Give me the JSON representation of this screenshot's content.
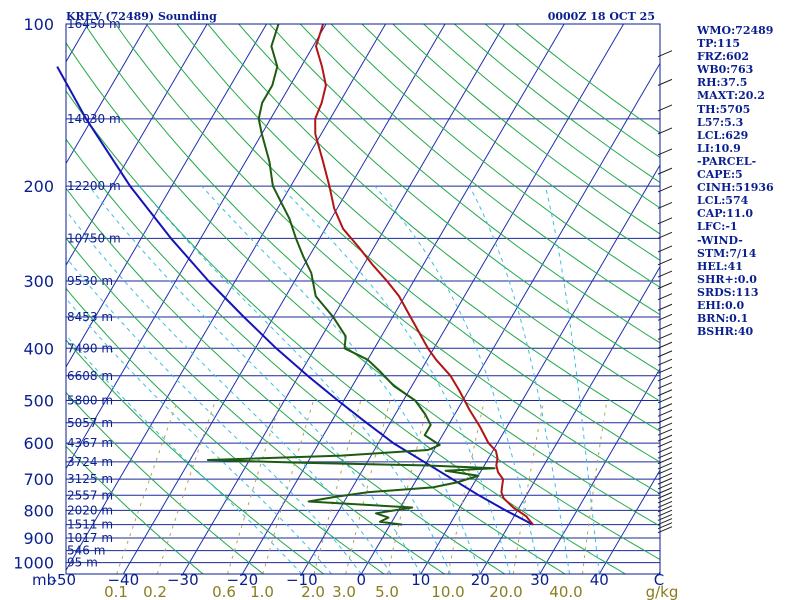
{
  "chart_data": {
    "type": "skew-t",
    "title": "KREV (72489) Sounding",
    "valid_time": "0000Z 18 OCT 25",
    "pressure_axis_unit": "mb",
    "temperature_unit": "C",
    "mixing_ratio_unit": "g/kg",
    "pressure_ticks": [
      100,
      200,
      300,
      400,
      500,
      600,
      700,
      800,
      900,
      1000
    ],
    "temperature_ticks": [
      -50,
      -40,
      -30,
      -20,
      -10,
      0,
      10,
      20,
      30,
      40
    ],
    "temperature_tick_labels": [
      "-50",
      "−40",
      "−30",
      "−20",
      "−10",
      "0",
      "10",
      "20",
      "30",
      "40"
    ],
    "temperature_axis_end_label": "C",
    "mixing_ratio_labels": [
      "0.1",
      "0.2",
      "0.6",
      "1.0",
      "2.0",
      "3.0",
      "5.0",
      "10.0",
      "20.0",
      "40.0",
      "g/kg"
    ],
    "mixing_ratio_values": [
      0.1,
      0.2,
      0.6,
      1.0,
      2.0,
      3.0,
      5.0,
      10.0,
      20.0,
      40.0
    ],
    "height_levels": [
      {
        "p": 100,
        "label": "16450 m"
      },
      {
        "p": 150,
        "label": "14030 m"
      },
      {
        "p": 200,
        "label": "12200 m"
      },
      {
        "p": 250,
        "label": "10750 m"
      },
      {
        "p": 300,
        "label": "9530 m"
      },
      {
        "p": 350,
        "label": "8453 m"
      },
      {
        "p": 400,
        "label": "7490 m"
      },
      {
        "p": 450,
        "label": "6608 m"
      },
      {
        "p": 500,
        "label": "5800 m"
      },
      {
        "p": 550,
        "label": "5057 m"
      },
      {
        "p": 600,
        "label": "4367 m"
      },
      {
        "p": 650,
        "label": "3724 m"
      },
      {
        "p": 700,
        "label": "3125 m"
      },
      {
        "p": 750,
        "label": "2557 m"
      },
      {
        "p": 800,
        "label": "2020 m"
      },
      {
        "p": 850,
        "label": "1511 m"
      },
      {
        "p": 900,
        "label": "1017 m"
      },
      {
        "p": 950,
        "label": "546 m"
      },
      {
        "p": 1000,
        "label": "95 m"
      }
    ],
    "temperature_profile": [
      {
        "p": 850,
        "t": 24.0
      },
      {
        "p": 820,
        "t": 22.0
      },
      {
        "p": 790,
        "t": 19.0
      },
      {
        "p": 760,
        "t": 16.5
      },
      {
        "p": 740,
        "t": 15.5
      },
      {
        "p": 720,
        "t": 15.0
      },
      {
        "p": 700,
        "t": 14.5
      },
      {
        "p": 680,
        "t": 13.0
      },
      {
        "p": 660,
        "t": 12.0
      },
      {
        "p": 640,
        "t": 11.5
      },
      {
        "p": 620,
        "t": 10.5
      },
      {
        "p": 600,
        "t": 8.5
      },
      {
        "p": 560,
        "t": 5.5
      },
      {
        "p": 520,
        "t": 2.0
      },
      {
        "p": 480,
        "t": -1.5
      },
      {
        "p": 450,
        "t": -4.5
      },
      {
        "p": 420,
        "t": -8.5
      },
      {
        "p": 400,
        "t": -11.0
      },
      {
        "p": 370,
        "t": -14.5
      },
      {
        "p": 350,
        "t": -17.0
      },
      {
        "p": 320,
        "t": -21.0
      },
      {
        "p": 300,
        "t": -24.5
      },
      {
        "p": 280,
        "t": -28.5
      },
      {
        "p": 260,
        "t": -32.5
      },
      {
        "p": 240,
        "t": -37.0
      },
      {
        "p": 220,
        "t": -40.5
      },
      {
        "p": 200,
        "t": -43.5
      },
      {
        "p": 180,
        "t": -47.0
      },
      {
        "p": 160,
        "t": -51.0
      },
      {
        "p": 150,
        "t": -52.5
      },
      {
        "p": 140,
        "t": -53.0
      },
      {
        "p": 130,
        "t": -54.0
      },
      {
        "p": 120,
        "t": -56.5
      },
      {
        "p": 110,
        "t": -59.5
      },
      {
        "p": 100,
        "t": -60.5
      }
    ],
    "dewpoint_profile": [
      {
        "p": 850,
        "t": 2.0
      },
      {
        "p": 840,
        "t": -2.0
      },
      {
        "p": 825,
        "t": -1.0
      },
      {
        "p": 810,
        "t": -3.5
      },
      {
        "p": 790,
        "t": 2.0
      },
      {
        "p": 770,
        "t": -16.0
      },
      {
        "p": 755,
        "t": -12.0
      },
      {
        "p": 740,
        "t": -7.0
      },
      {
        "p": 725,
        "t": 3.5
      },
      {
        "p": 710,
        "t": 7.0
      },
      {
        "p": 690,
        "t": 10.0
      },
      {
        "p": 675,
        "t": 4.0
      },
      {
        "p": 668,
        "t": 12.0
      },
      {
        "p": 660,
        "t": 0.0
      },
      {
        "p": 653,
        "t": -20.0
      },
      {
        "p": 645,
        "t": -37.0
      },
      {
        "p": 633,
        "t": -15.0
      },
      {
        "p": 618,
        "t": -1.0
      },
      {
        "p": 605,
        "t": 0.5
      },
      {
        "p": 580,
        "t": -3.0
      },
      {
        "p": 555,
        "t": -3.0
      },
      {
        "p": 530,
        "t": -5.0
      },
      {
        "p": 500,
        "t": -8.0
      },
      {
        "p": 470,
        "t": -13.0
      },
      {
        "p": 440,
        "t": -17.0
      },
      {
        "p": 420,
        "t": -20.0
      },
      {
        "p": 400,
        "t": -25.0
      },
      {
        "p": 380,
        "t": -26.0
      },
      {
        "p": 350,
        "t": -30.0
      },
      {
        "p": 320,
        "t": -35.0
      },
      {
        "p": 290,
        "t": -38.0
      },
      {
        "p": 270,
        "t": -41.0
      },
      {
        "p": 250,
        "t": -44.0
      },
      {
        "p": 230,
        "t": -47.0
      },
      {
        "p": 200,
        "t": -53.0
      },
      {
        "p": 180,
        "t": -56.0
      },
      {
        "p": 160,
        "t": -60.0
      },
      {
        "p": 150,
        "t": -62.0
      },
      {
        "p": 140,
        "t": -63.0
      },
      {
        "p": 130,
        "t": -63.0
      },
      {
        "p": 120,
        "t": -64.0
      },
      {
        "p": 110,
        "t": -67.0
      },
      {
        "p": 100,
        "t": -68.0
      }
    ],
    "parcel_trace": [
      {
        "p": 850,
        "t": 24.0
      },
      {
        "p": 800,
        "t": 18.0
      },
      {
        "p": 750,
        "t": 12.0
      },
      {
        "p": 700,
        "t": 6.0
      },
      {
        "p": 650,
        "t": -0.5
      },
      {
        "p": 600,
        "t": -7.5
      },
      {
        "p": 550,
        "t": -14.0
      },
      {
        "p": 500,
        "t": -21.0
      },
      {
        "p": 450,
        "t": -28.5
      },
      {
        "p": 400,
        "t": -36.5
      },
      {
        "p": 350,
        "t": -45.0
      },
      {
        "p": 300,
        "t": -54.5
      },
      {
        "p": 250,
        "t": -65.0
      },
      {
        "p": 200,
        "t": -77.0
      },
      {
        "p": 150,
        "t": -91.0
      },
      {
        "p": 120,
        "t": -101.0
      }
    ],
    "colors": {
      "frame_and_text": "#0a1f8f",
      "isobars": "#1a2a9c",
      "isotherms": "#1e2fb0",
      "dry_adiabats": "#22a84a",
      "moist_adiabats": "#3cbfe2",
      "mixing_ratio": "#b8a455",
      "mixing_ratio_labels": "#8a7c1f",
      "temperature": "#b21414",
      "dewpoint": "#1e5a10",
      "parcel": "#1414b8",
      "wind": "#202020"
    }
  },
  "indices": {
    "lines": [
      "WMO:72489",
      "TP:115",
      "FRZ:602",
      "WB0:763",
      "RH:37.5",
      "MAXT:20.2",
      "TH:5705",
      "L57:5.3",
      "LCL:629",
      "LI:10.9",
      "-PARCEL-",
      "CAPE:5",
      "CINH:51936",
      "LCL:574",
      "CAP:11.0",
      "LFC:-1",
      "-WIND-",
      "STM:7/14",
      "HEL:41",
      "SHR+:0.0",
      "SRDS:113",
      "EHI:0.0",
      "BRN:0.1",
      "BSHR:40"
    ]
  }
}
